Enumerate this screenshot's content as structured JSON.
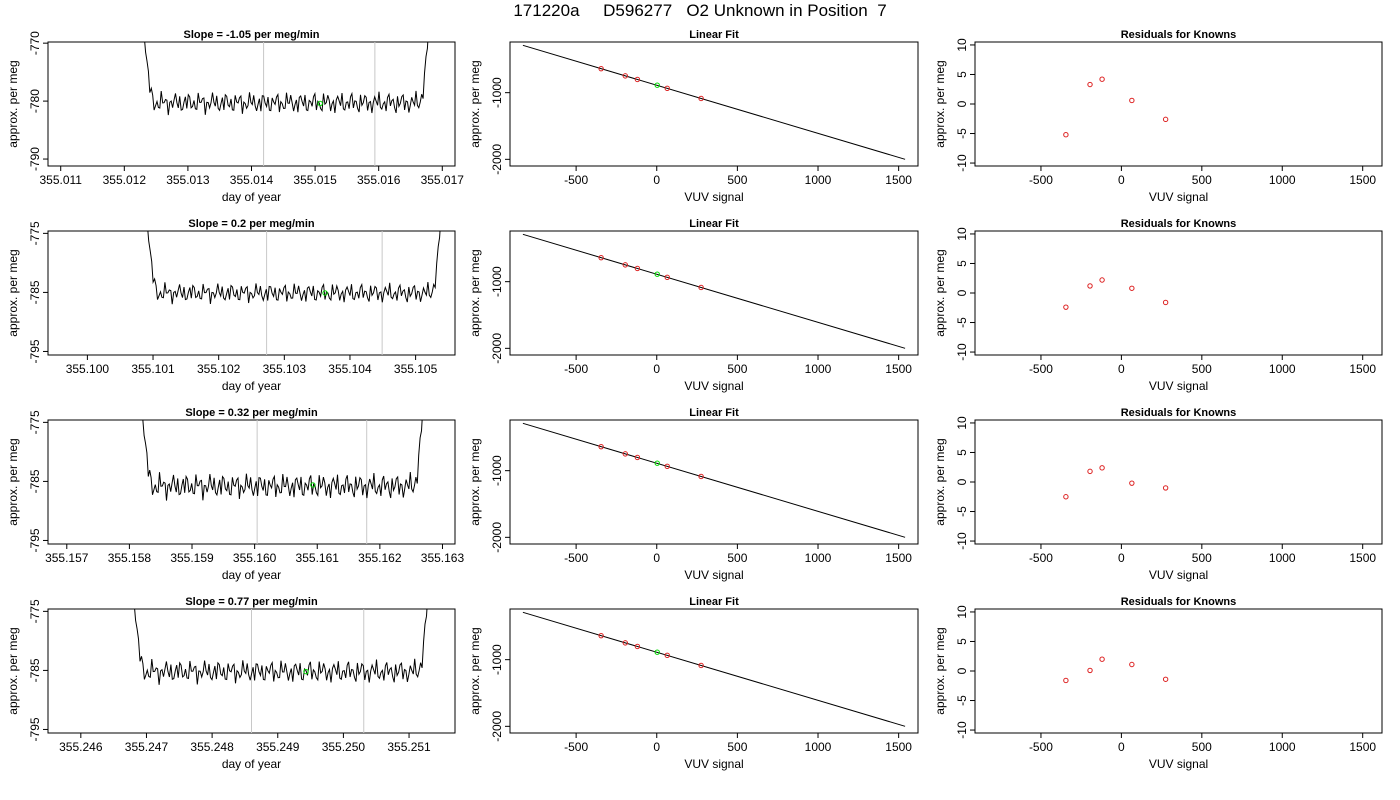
{
  "page": {
    "title": "171220a     D596277   O2 Unknown in Position  7"
  },
  "chart_data": [
    {
      "type": "line",
      "title": "Slope =  -1.05  per meg/min",
      "xlabel": "day of year",
      "ylabel": "approx. per meg",
      "xlim": [
        355.0108,
        355.0172
      ],
      "ylim": [
        -791.2,
        -769.8
      ],
      "xticks": [
        {
          "value": 355.011,
          "label": "355.011"
        },
        {
          "value": 355.012,
          "label": "355.012"
        },
        {
          "value": 355.013,
          "label": "355.013"
        },
        {
          "value": 355.014,
          "label": "355.014"
        },
        {
          "value": 355.015,
          "label": "355.015"
        },
        {
          "value": 355.016,
          "label": "355.016"
        },
        {
          "value": 355.017,
          "label": "355.017"
        }
      ],
      "yticks": [
        {
          "value": -770,
          "label": "-770"
        },
        {
          "value": -780,
          "label": "-780"
        },
        {
          "value": -790,
          "label": "-790"
        }
      ],
      "vlines": [
        355.01419,
        355.01594
      ],
      "x_start": 355.0122,
      "x_end": 355.0169,
      "trace_mean": -780.3,
      "trace_amplitude": 1.9,
      "marker": {
        "x": 355.01508,
        "y": -780.4
      },
      "color": "#000000",
      "marker_color": "#00dd00",
      "grid": false
    },
    {
      "type": "scatter",
      "title": "Linear Fit",
      "xlabel": "VUV signal",
      "ylabel": "approx. per meg",
      "xlim": [
        -910,
        1620
      ],
      "ylim": [
        -2100,
        -240
      ],
      "xticks": [
        {
          "value": -500,
          "label": "-500"
        },
        {
          "value": 0,
          "label": "0"
        },
        {
          "value": 500,
          "label": "500"
        },
        {
          "value": 1000,
          "label": "1000"
        },
        {
          "value": 1500,
          "label": "1500"
        }
      ],
      "yticks": [
        {
          "value": -1000,
          "label": "-1000"
        },
        {
          "value": -2000,
          "label": "-2000"
        }
      ],
      "fit_line": {
        "x": [
          -830,
          1540
        ],
        "y": [
          -290,
          -2000
        ]
      },
      "knowns": {
        "x": [
          -345,
          -195,
          -120,
          65,
          275
        ],
        "y": [
          -640,
          -748,
          -802,
          -935,
          -1087
        ]
      },
      "unknown": {
        "x": 3,
        "y": -888
      },
      "line_color": "#000000",
      "known_color": "#dd2222",
      "unknown_color": "#00dd00",
      "grid": false
    },
    {
      "type": "scatter",
      "title": "Residuals for Knowns",
      "xlabel": "VUV signal",
      "ylabel": "approx. per meg",
      "xlim": [
        -910,
        1620
      ],
      "ylim": [
        -10.5,
        10.5
      ],
      "xticks": [
        {
          "value": -500,
          "label": "-500"
        },
        {
          "value": 0,
          "label": "0"
        },
        {
          "value": 500,
          "label": "500"
        },
        {
          "value": 1000,
          "label": "1000"
        },
        {
          "value": 1500,
          "label": "1500"
        }
      ],
      "yticks": [
        {
          "value": 10,
          "label": "10"
        },
        {
          "value": 5,
          "label": "5"
        },
        {
          "value": 0,
          "label": "0"
        },
        {
          "value": -5,
          "label": "-5"
        },
        {
          "value": -10,
          "label": "-10"
        }
      ],
      "points": {
        "x": [
          -345,
          -195,
          -120,
          65,
          275
        ],
        "y": [
          -5.2,
          3.3,
          4.2,
          0.6,
          -2.6
        ]
      },
      "point_color": "#dd2222",
      "grid": false
    },
    {
      "type": "line",
      "title": "Slope =  0.2  per meg/min",
      "xlabel": "day of year",
      "ylabel": "approx. per meg",
      "xlim": [
        355.0994,
        355.1056
      ],
      "ylim": [
        -795.6,
        -774.6
      ],
      "xticks": [
        {
          "value": 355.1,
          "label": "355.100"
        },
        {
          "value": 355.101,
          "label": "355.101"
        },
        {
          "value": 355.102,
          "label": "355.102"
        },
        {
          "value": 355.103,
          "label": "355.103"
        },
        {
          "value": 355.104,
          "label": "355.104"
        },
        {
          "value": 355.105,
          "label": "355.105"
        }
      ],
      "yticks": [
        {
          "value": -775,
          "label": "-775"
        },
        {
          "value": -785,
          "label": "-785"
        },
        {
          "value": -795,
          "label": "-795"
        }
      ],
      "vlines": [
        355.10273,
        355.10449
      ],
      "x_start": 355.1008,
      "x_end": 355.1055,
      "trace_mean": -785.1,
      "trace_amplitude": 1.7,
      "marker": {
        "x": 355.10362,
        "y": -785.1
      },
      "color": "#000000",
      "marker_color": "#00dd00",
      "grid": false
    },
    {
      "type": "scatter",
      "title": "Linear Fit",
      "xlabel": "VUV signal",
      "ylabel": "approx. per meg",
      "xlim": [
        -910,
        1620
      ],
      "ylim": [
        -2100,
        -240
      ],
      "xticks": [
        {
          "value": -500,
          "label": "-500"
        },
        {
          "value": 0,
          "label": "0"
        },
        {
          "value": 500,
          "label": "500"
        },
        {
          "value": 1000,
          "label": "1000"
        },
        {
          "value": 1500,
          "label": "1500"
        }
      ],
      "yticks": [
        {
          "value": -1000,
          "label": "-1000"
        },
        {
          "value": -2000,
          "label": "-2000"
        }
      ],
      "fit_line": {
        "x": [
          -830,
          1540
        ],
        "y": [
          -290,
          -2000
        ]
      },
      "knowns": {
        "x": [
          -345,
          -195,
          -120,
          65,
          275
        ],
        "y": [
          -640,
          -748,
          -802,
          -935,
          -1087
        ]
      },
      "unknown": {
        "x": 3,
        "y": -888
      },
      "line_color": "#000000",
      "known_color": "#dd2222",
      "unknown_color": "#00dd00",
      "grid": false
    },
    {
      "type": "scatter",
      "title": "Residuals for Knowns",
      "xlabel": "VUV signal",
      "ylabel": "approx. per meg",
      "xlim": [
        -910,
        1620
      ],
      "ylim": [
        -10.5,
        10.5
      ],
      "xticks": [
        {
          "value": -500,
          "label": "-500"
        },
        {
          "value": 0,
          "label": "0"
        },
        {
          "value": 500,
          "label": "500"
        },
        {
          "value": 1000,
          "label": "1000"
        },
        {
          "value": 1500,
          "label": "1500"
        }
      ],
      "yticks": [
        {
          "value": 10,
          "label": "10"
        },
        {
          "value": 5,
          "label": "5"
        },
        {
          "value": 0,
          "label": "0"
        },
        {
          "value": -5,
          "label": "-5"
        },
        {
          "value": -10,
          "label": "-10"
        }
      ],
      "points": {
        "x": [
          -345,
          -195,
          -120,
          65,
          275
        ],
        "y": [
          -2.4,
          1.2,
          2.2,
          0.8,
          -1.6
        ]
      },
      "point_color": "#dd2222",
      "grid": false
    },
    {
      "type": "line",
      "title": "Slope =  0.32  per meg/min",
      "xlabel": "day of year",
      "ylabel": "approx. per meg",
      "xlim": [
        355.1567,
        355.1632
      ],
      "ylim": [
        -795.6,
        -774.6
      ],
      "xticks": [
        {
          "value": 355.157,
          "label": "355.157"
        },
        {
          "value": 355.158,
          "label": "355.158"
        },
        {
          "value": 355.159,
          "label": "355.159"
        },
        {
          "value": 355.16,
          "label": "355.160"
        },
        {
          "value": 355.161,
          "label": "355.161"
        },
        {
          "value": 355.162,
          "label": "355.162"
        },
        {
          "value": 355.163,
          "label": "355.163"
        }
      ],
      "yticks": [
        {
          "value": -775,
          "label": "-775"
        },
        {
          "value": -785,
          "label": "-785"
        },
        {
          "value": -795,
          "label": "-795"
        }
      ],
      "vlines": [
        355.16004,
        355.16179
      ],
      "x_start": 355.1581,
      "x_end": 355.1628,
      "trace_mean": -785.8,
      "trace_amplitude": 2.2,
      "marker": {
        "x": 355.16093,
        "y": -785.6
      },
      "color": "#000000",
      "marker_color": "#00dd00",
      "grid": false
    },
    {
      "type": "scatter",
      "title": "Linear Fit",
      "xlabel": "VUV signal",
      "ylabel": "approx. per meg",
      "xlim": [
        -910,
        1620
      ],
      "ylim": [
        -2100,
        -240
      ],
      "xticks": [
        {
          "value": -500,
          "label": "-500"
        },
        {
          "value": 0,
          "label": "0"
        },
        {
          "value": 500,
          "label": "500"
        },
        {
          "value": 1000,
          "label": "1000"
        },
        {
          "value": 1500,
          "label": "1500"
        }
      ],
      "yticks": [
        {
          "value": -1000,
          "label": "-1000"
        },
        {
          "value": -2000,
          "label": "-2000"
        }
      ],
      "fit_line": {
        "x": [
          -830,
          1540
        ],
        "y": [
          -290,
          -2000
        ]
      },
      "knowns": {
        "x": [
          -345,
          -195,
          -120,
          65,
          275
        ],
        "y": [
          -640,
          -748,
          -802,
          -935,
          -1087
        ]
      },
      "unknown": {
        "x": 3,
        "y": -888
      },
      "line_color": "#000000",
      "known_color": "#dd2222",
      "unknown_color": "#00dd00",
      "grid": false
    },
    {
      "type": "scatter",
      "title": "Residuals for Knowns",
      "xlabel": "VUV signal",
      "ylabel": "approx. per meg",
      "xlim": [
        -910,
        1620
      ],
      "ylim": [
        -10.5,
        10.5
      ],
      "xticks": [
        {
          "value": -500,
          "label": "-500"
        },
        {
          "value": 0,
          "label": "0"
        },
        {
          "value": 500,
          "label": "500"
        },
        {
          "value": 1000,
          "label": "1000"
        },
        {
          "value": 1500,
          "label": "1500"
        }
      ],
      "yticks": [
        {
          "value": 10,
          "label": "10"
        },
        {
          "value": 5,
          "label": "5"
        },
        {
          "value": 0,
          "label": "0"
        },
        {
          "value": -5,
          "label": "-5"
        },
        {
          "value": -10,
          "label": "-10"
        }
      ],
      "points": {
        "x": [
          -345,
          -195,
          -120,
          65,
          275
        ],
        "y": [
          -2.5,
          1.8,
          2.4,
          -0.2,
          -1.0
        ]
      },
      "point_color": "#dd2222",
      "grid": false
    },
    {
      "type": "line",
      "title": "Slope =  0.77  per meg/min",
      "xlabel": "day of year",
      "ylabel": "approx. per meg",
      "xlim": [
        355.2455,
        355.2517
      ],
      "ylim": [
        -795.6,
        -774.6
      ],
      "xticks": [
        {
          "value": 355.246,
          "label": "355.246"
        },
        {
          "value": 355.247,
          "label": "355.247"
        },
        {
          "value": 355.248,
          "label": "355.248"
        },
        {
          "value": 355.249,
          "label": "355.249"
        },
        {
          "value": 355.25,
          "label": "355.250"
        },
        {
          "value": 355.251,
          "label": "355.251"
        }
      ],
      "yticks": [
        {
          "value": -775,
          "label": "-775"
        },
        {
          "value": -785,
          "label": "-785"
        },
        {
          "value": -795,
          "label": "-795"
        }
      ],
      "vlines": [
        355.2486,
        355.25031
      ],
      "x_start": 355.2467,
      "x_end": 355.2514,
      "trace_mean": -785.2,
      "trace_amplitude": 2.0,
      "marker": {
        "x": 355.24943,
        "y": -785.2
      },
      "color": "#000000",
      "marker_color": "#00dd00",
      "grid": false
    },
    {
      "type": "scatter",
      "title": "Linear Fit",
      "xlabel": "VUV signal",
      "ylabel": "approx. per meg",
      "xlim": [
        -910,
        1620
      ],
      "ylim": [
        -2100,
        -240
      ],
      "xticks": [
        {
          "value": -500,
          "label": "-500"
        },
        {
          "value": 0,
          "label": "0"
        },
        {
          "value": 500,
          "label": "500"
        },
        {
          "value": 1000,
          "label": "1000"
        },
        {
          "value": 1500,
          "label": "1500"
        }
      ],
      "yticks": [
        {
          "value": -1000,
          "label": "-1000"
        },
        {
          "value": -2000,
          "label": "-2000"
        }
      ],
      "fit_line": {
        "x": [
          -830,
          1540
        ],
        "y": [
          -290,
          -2000
        ]
      },
      "knowns": {
        "x": [
          -345,
          -195,
          -120,
          65,
          275
        ],
        "y": [
          -640,
          -748,
          -802,
          -935,
          -1087
        ]
      },
      "unknown": {
        "x": 3,
        "y": -888
      },
      "line_color": "#000000",
      "known_color": "#dd2222",
      "unknown_color": "#00dd00",
      "grid": false
    },
    {
      "type": "scatter",
      "title": "Residuals for Knowns",
      "xlabel": "VUV signal",
      "ylabel": "approx. per meg",
      "xlim": [
        -910,
        1620
      ],
      "ylim": [
        -10.5,
        10.5
      ],
      "xticks": [
        {
          "value": -500,
          "label": "-500"
        },
        {
          "value": 0,
          "label": "0"
        },
        {
          "value": 500,
          "label": "500"
        },
        {
          "value": 1000,
          "label": "1000"
        },
        {
          "value": 1500,
          "label": "1500"
        }
      ],
      "yticks": [
        {
          "value": 10,
          "label": "10"
        },
        {
          "value": 5,
          "label": "5"
        },
        {
          "value": 0,
          "label": "0"
        },
        {
          "value": -5,
          "label": "-5"
        },
        {
          "value": -10,
          "label": "-10"
        }
      ],
      "points": {
        "x": [
          -345,
          -195,
          -120,
          65,
          275
        ],
        "y": [
          -1.6,
          0.1,
          2.0,
          1.1,
          -1.4
        ]
      },
      "point_color": "#dd2222",
      "grid": false
    }
  ]
}
